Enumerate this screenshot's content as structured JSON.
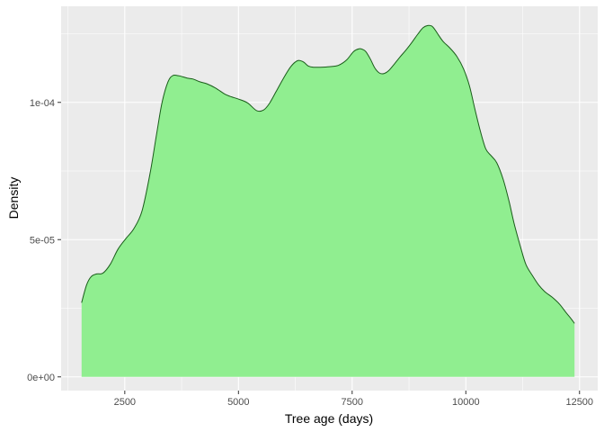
{
  "chart_data": {
    "type": "area",
    "title": "",
    "xlabel": "Tree age (days)",
    "ylabel": "Density",
    "xlim": [
      1100,
      12900
    ],
    "ylim": [
      -5e-06,
      0.000135
    ],
    "x_ticks": [
      2500,
      5000,
      7500,
      10000,
      12500
    ],
    "x_tick_labels": [
      "2500",
      "5000",
      "7500",
      "10000",
      "12500"
    ],
    "y_ticks": [
      0,
      5e-05,
      0.0001
    ],
    "y_tick_labels": [
      "0e+00",
      "5e-05",
      "1e-04"
    ],
    "grid": true,
    "legend": "none",
    "colors": {
      "panel": "#ebebeb",
      "grid": "#ffffff",
      "fill": "#90ee90",
      "line": "#1a5c1a"
    },
    "series": [
      {
        "x": [
          1550,
          1660,
          1760,
          1880,
          2020,
          2180,
          2350,
          2530,
          2700,
          2880,
          3060,
          3200,
          3320,
          3450,
          3560,
          3680,
          3780,
          3880,
          4000,
          4150,
          4300,
          4500,
          4700,
          4850,
          5000,
          5200,
          5400,
          5550,
          5680,
          5830,
          5980,
          6150,
          6300,
          6420,
          6540,
          6650,
          6800,
          7000,
          7200,
          7380,
          7530,
          7650,
          7730,
          7800,
          7900,
          8000,
          8100,
          8200,
          8300,
          8420,
          8550,
          8680,
          8820,
          8950,
          9060,
          9160,
          9250,
          9320,
          9400,
          9500,
          9650,
          9800,
          9950,
          10080,
          10200,
          10320,
          10440,
          10560,
          10680,
          10820,
          10950,
          11060,
          11200,
          11320,
          11460,
          11600,
          11740,
          11900,
          12060,
          12200,
          12300,
          12390
        ],
        "y": [
          2.7e-05,
          3.35e-05,
          3.65e-05,
          3.75e-05,
          3.78e-05,
          4.1e-05,
          4.65e-05,
          5.05e-05,
          5.4e-05,
          6.05e-05,
          7.45e-05,
          8.85e-05,
          0.0001,
          0.0001075,
          0.0001098,
          0.0001097,
          0.0001093,
          0.0001088,
          0.0001085,
          0.0001075,
          0.0001068,
          0.0001052,
          0.000103,
          0.000102,
          0.0001012,
          9.98e-05,
          9.7e-05,
          9.72e-05,
          9.96e-05,
          0.000104,
          0.0001085,
          0.000113,
          0.0001152,
          0.0001148,
          0.0001132,
          0.0001128,
          0.0001128,
          0.000113,
          0.0001135,
          0.0001155,
          0.0001185,
          0.0001195,
          0.0001193,
          0.0001185,
          0.0001158,
          0.0001125,
          0.0001107,
          0.0001105,
          0.0001115,
          0.0001138,
          0.0001165,
          0.000119,
          0.000122,
          0.000125,
          0.0001272,
          0.000128,
          0.0001278,
          0.0001265,
          0.0001245,
          0.0001222,
          0.0001198,
          0.0001168,
          0.0001122,
          0.000106,
          9.75e-05,
          8.95e-05,
          8.3e-05,
          8.05e-05,
          7.8e-05,
          7.2e-05,
          6.4e-05,
          5.6e-05,
          4.75e-05,
          4.1e-05,
          3.7e-05,
          3.35e-05,
          3.1e-05,
          2.9e-05,
          2.65e-05,
          2.35e-05,
          2.15e-05,
          1.95e-05
        ]
      }
    ]
  }
}
